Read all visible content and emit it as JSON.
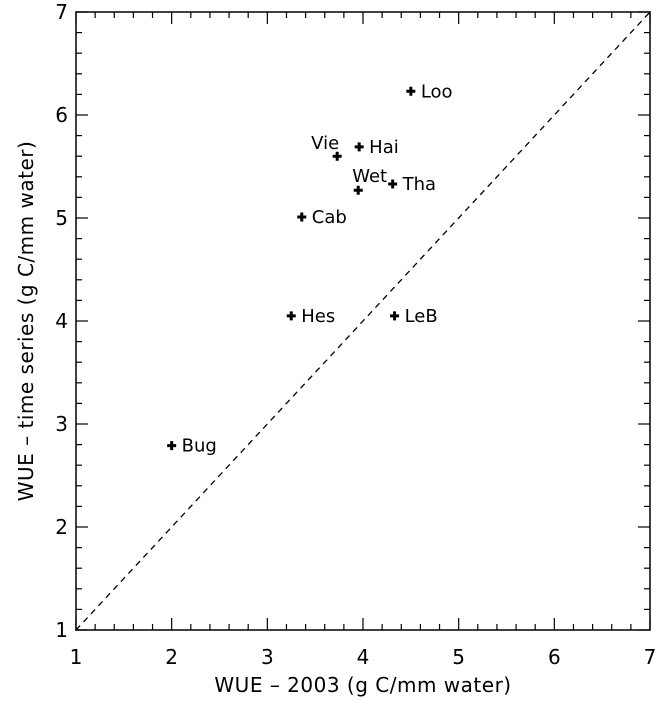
{
  "chart_data": {
    "type": "scatter",
    "title": "",
    "xlabel": "WUE – 2003 (g C/mm water)",
    "ylabel": "WUE – time series (g C/mm water)",
    "xlim": [
      1,
      7
    ],
    "ylim": [
      1,
      7
    ],
    "x_ticks": [
      "1",
      "2",
      "3",
      "4",
      "5",
      "6",
      "7"
    ],
    "y_ticks": [
      "1",
      "2",
      "3",
      "4",
      "5",
      "6",
      "7"
    ],
    "grid": false,
    "legend": "none",
    "reference_line": "1:1 dashed",
    "points": [
      {
        "label": "Loo",
        "x": 4.5,
        "y": 6.23
      },
      {
        "label": "Vie",
        "x": 3.73,
        "y": 5.6
      },
      {
        "label": "Hai",
        "x": 3.96,
        "y": 5.69
      },
      {
        "label": "Wet",
        "x": 3.95,
        "y": 5.27
      },
      {
        "label": "Tha",
        "x": 4.31,
        "y": 5.33
      },
      {
        "label": "Cab",
        "x": 3.36,
        "y": 5.01
      },
      {
        "label": "Hes",
        "x": 3.25,
        "y": 4.05
      },
      {
        "label": "LeB",
        "x": 4.33,
        "y": 4.05
      },
      {
        "label": "Bug",
        "x": 2.0,
        "y": 2.79
      }
    ]
  }
}
